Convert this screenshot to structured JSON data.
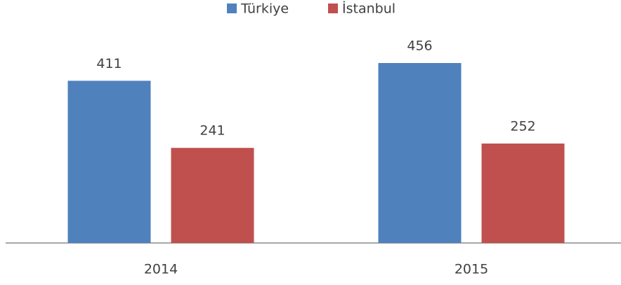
{
  "chart_data": {
    "type": "bar",
    "categories": [
      "2014",
      "2015"
    ],
    "series": [
      {
        "name": "Türkiye",
        "color": "#4f81bd",
        "values": [
          411,
          456
        ]
      },
      {
        "name": "İstanbul",
        "color": "#c0504d",
        "values": [
          241,
          252
        ]
      }
    ],
    "legend": "top"
  }
}
